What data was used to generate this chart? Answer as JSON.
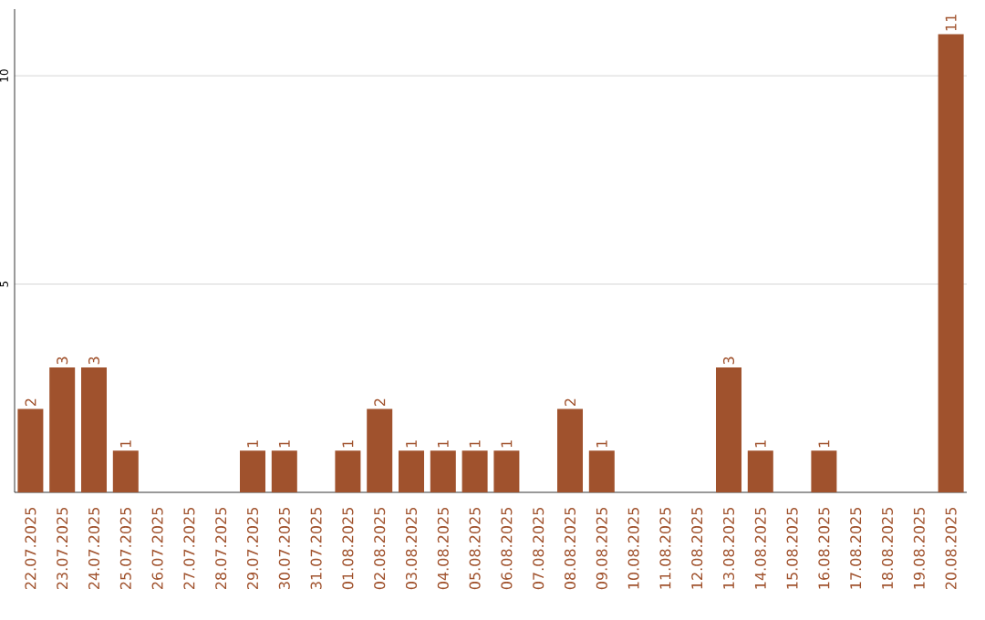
{
  "chart_data": {
    "type": "bar",
    "categories": [
      "22.07.2025",
      "23.07.2025",
      "24.07.2025",
      "25.07.2025",
      "26.07.2025",
      "27.07.2025",
      "28.07.2025",
      "29.07.2025",
      "30.07.2025",
      "31.07.2025",
      "01.08.2025",
      "02.08.2025",
      "03.08.2025",
      "04.08.2025",
      "05.08.2025",
      "06.08.2025",
      "07.08.2025",
      "08.08.2025",
      "09.08.2025",
      "10.08.2025",
      "11.08.2025",
      "12.08.2025",
      "13.08.2025",
      "14.08.2025",
      "15.08.2025",
      "16.08.2025",
      "17.08.2025",
      "18.08.2025",
      "19.08.2025",
      "20.08.2025"
    ],
    "values": [
      2,
      3,
      3,
      1,
      0,
      0,
      0,
      1,
      1,
      0,
      1,
      2,
      1,
      1,
      1,
      1,
      0,
      2,
      1,
      0,
      0,
      0,
      3,
      1,
      0,
      1,
      0,
      0,
      0,
      11
    ],
    "value_labels": [
      "2",
      "3",
      "3",
      "1",
      null,
      null,
      null,
      "1",
      "1",
      null,
      "1",
      "2",
      "1",
      "1",
      "1",
      "1",
      null,
      "2",
      "1",
      null,
      null,
      null,
      "3",
      "1",
      null,
      "1",
      null,
      null,
      null,
      "11"
    ],
    "color": "#a0522d",
    "ylim": [
      0,
      11.6
    ],
    "yticks": [
      5,
      10
    ],
    "grid": "y"
  }
}
